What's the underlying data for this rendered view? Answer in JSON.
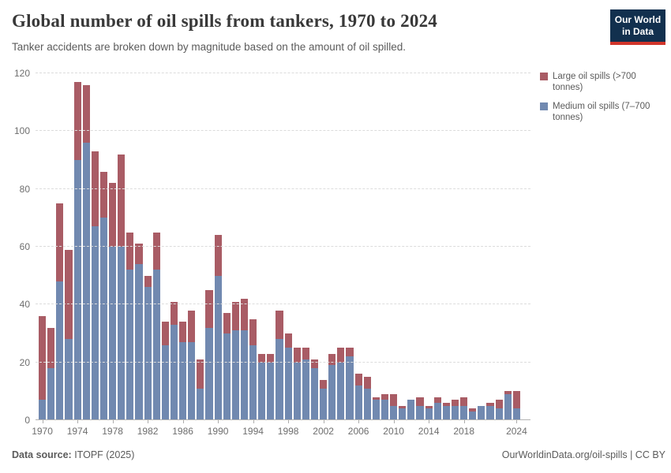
{
  "header": {
    "title": "Global number of oil spills from tankers, 1970 to 2024",
    "subtitle": "Tanker accidents are broken down by magnitude based on the amount of oil spilled."
  },
  "logo": {
    "line1": "Our World",
    "line2": "in Data",
    "bg_color": "#12304e",
    "strip_color": "#d1352b"
  },
  "legend": {
    "items": [
      {
        "label": "Large oil spills (>700 tonnes)",
        "color": "#a95c65"
      },
      {
        "label": "Medium oil spills (7–700 tonnes)",
        "color": "#7189b0"
      }
    ]
  },
  "chart_data": {
    "type": "bar",
    "stacked": true,
    "title": "Global number of oil spills from tankers, 1970 to 2024",
    "xlabel": "",
    "ylabel": "",
    "ylim": [
      0,
      120
    ],
    "yticks": [
      0,
      20,
      40,
      60,
      80,
      100,
      120
    ],
    "grid": "horizontal-dashed",
    "legend_position": "right",
    "x": [
      1970,
      1971,
      1972,
      1973,
      1974,
      1975,
      1976,
      1977,
      1978,
      1979,
      1980,
      1981,
      1982,
      1983,
      1984,
      1985,
      1986,
      1987,
      1988,
      1989,
      1990,
      1991,
      1992,
      1993,
      1994,
      1995,
      1996,
      1997,
      1998,
      1999,
      2000,
      2001,
      2002,
      2003,
      2004,
      2005,
      2006,
      2007,
      2008,
      2009,
      2010,
      2011,
      2012,
      2013,
      2014,
      2015,
      2016,
      2017,
      2018,
      2019,
      2020,
      2021,
      2022,
      2023,
      2024
    ],
    "xtick_labels": [
      1970,
      1974,
      1978,
      1982,
      1986,
      1990,
      1994,
      1998,
      2002,
      2006,
      2010,
      2014,
      2018,
      2024
    ],
    "series": [
      {
        "name": "Medium oil spills (7–700 tonnes)",
        "color": "#7189b0",
        "values": [
          7,
          18,
          48,
          28,
          90,
          96,
          67,
          70,
          60,
          60,
          52,
          54,
          46,
          52,
          26,
          33,
          27,
          27,
          11,
          32,
          50,
          30,
          31,
          31,
          26,
          20,
          20,
          28,
          25,
          20,
          21,
          18,
          11,
          19,
          20,
          22,
          12,
          11,
          7,
          7,
          5,
          4,
          7,
          5,
          4,
          6,
          5,
          5,
          5,
          3,
          5,
          5,
          4,
          9,
          4
        ]
      },
      {
        "name": "Large oil spills (>700 tonnes)",
        "color": "#a95c65",
        "values": [
          29,
          14,
          27,
          31,
          27,
          20,
          26,
          16,
          22,
          32,
          13,
          7,
          4,
          13,
          8,
          8,
          7,
          11,
          10,
          13,
          14,
          7,
          10,
          11,
          9,
          3,
          3,
          10,
          5,
          5,
          4,
          3,
          3,
          4,
          5,
          3,
          4,
          4,
          1,
          2,
          4,
          1,
          0,
          3,
          1,
          2,
          1,
          2,
          3,
          1,
          0,
          1,
          3,
          1,
          6
        ]
      }
    ]
  },
  "footer": {
    "source_label": "Data source:",
    "source_value": " ITOPF (2025)",
    "right": "OurWorldinData.org/oil-spills | CC BY"
  }
}
